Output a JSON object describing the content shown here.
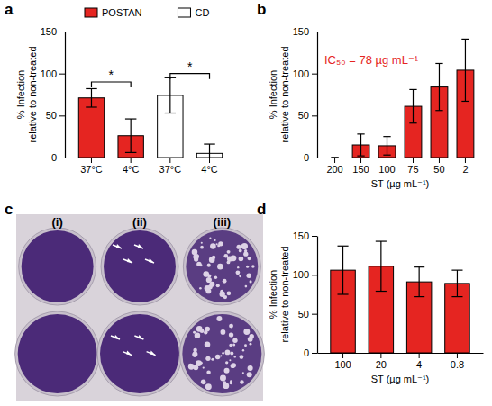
{
  "chart_data": [
    {
      "type": "bar",
      "panel": "a",
      "categories": [
        "37°C",
        "4°C",
        "37°C",
        "4°C"
      ],
      "series": [
        {
          "name": "POSTAN",
          "color": "#e52521",
          "values": [
            71,
            26,
            null,
            null
          ],
          "errors": [
            11,
            20,
            null,
            null
          ]
        },
        {
          "name": "CD",
          "color": "#ffffff",
          "values": [
            null,
            null,
            74,
            5
          ],
          "errors": [
            null,
            null,
            21,
            11
          ]
        }
      ],
      "ylabel": [
        "% Infection",
        "relative to non-treated"
      ],
      "ylim": [
        0,
        150
      ],
      "yticks": [
        0,
        50,
        100,
        150
      ],
      "grid": false,
      "legend": "top",
      "annotations": [
        {
          "text": "*",
          "between": [
            0,
            1
          ],
          "y": 90
        },
        {
          "text": "*",
          "between": [
            2,
            3
          ],
          "y": 100
        }
      ]
    },
    {
      "type": "bar",
      "panel": "b",
      "categories": [
        "200",
        "150",
        "100",
        "75",
        "50",
        "2"
      ],
      "values": [
        0,
        15,
        14,
        61,
        84,
        104
      ],
      "errors": [
        0,
        13,
        11,
        20,
        28,
        37
      ],
      "color": "#e52521",
      "xlabel": "ST (µg mL⁻¹)",
      "ylabel": [
        "% Infection",
        "relative to non-treated"
      ],
      "ylim": [
        0,
        150
      ],
      "yticks": [
        0,
        50,
        100,
        150
      ],
      "grid": false,
      "annotations": [
        {
          "text": "IC₅₀ = 78 µg mL⁻¹",
          "color": "#e52521"
        }
      ]
    },
    {
      "type": "image",
      "panel": "c",
      "labels": [
        "(i)",
        "(ii)",
        "(iii)"
      ]
    },
    {
      "type": "bar",
      "panel": "d",
      "categories": [
        "100",
        "20",
        "4",
        "0.8"
      ],
      "values": [
        106,
        111,
        91,
        89
      ],
      "errors": [
        31,
        32,
        19,
        17
      ],
      "color": "#e52521",
      "xlabel": "ST (µg mL⁻¹)",
      "ylabel": [
        "% Infection",
        "relative to non-treated"
      ],
      "ylim": [
        0,
        150
      ],
      "yticks": [
        0,
        50,
        100,
        150
      ],
      "grid": false
    }
  ]
}
